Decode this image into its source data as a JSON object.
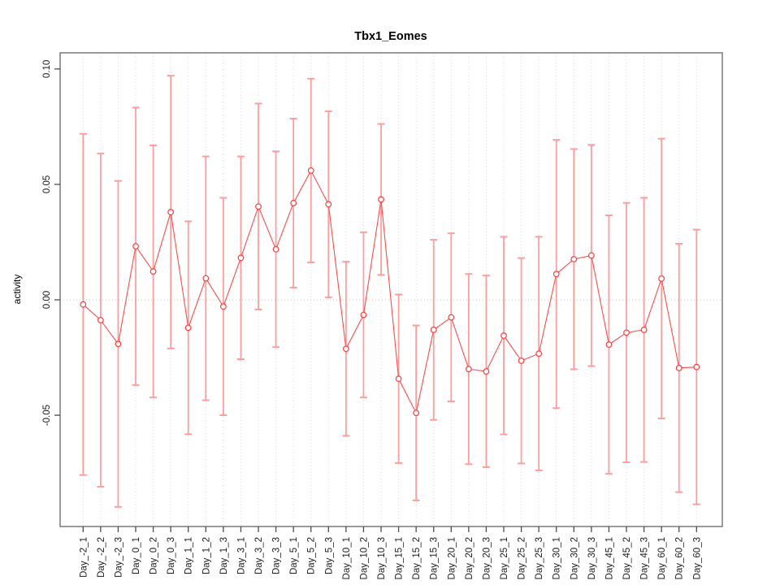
{
  "figure": {
    "title": "Tbx1_Eomes",
    "ylabel": "activity"
  },
  "chart_data": {
    "type": "line",
    "title": "Tbx1_Eomes",
    "xlabel": "",
    "ylabel": "activity",
    "legend": "none",
    "grid": "vertical dotted gridline at every category; dotted horizontal line at y=0",
    "marker": "open-circle",
    "error_bars": "symmetric, capped",
    "ylim": [
      -0.0982,
      0.107
    ],
    "y_ticks": [
      0.1,
      0.05,
      0.0,
      -0.05
    ],
    "y_tick_labels": [
      "0.10",
      "0.05",
      "0.00",
      "-0.05"
    ],
    "categories": [
      "Day_-2_1",
      "Day_-2_2",
      "Day_-2_3",
      "Day_0_1",
      "Day_0_2",
      "Day_0_3",
      "Day_1_1",
      "Day_1_2",
      "Day_1_3",
      "Day_3_1",
      "Day_3_2",
      "Day_3_3",
      "Day_5_1",
      "Day_5_2",
      "Day_5_3",
      "Day_10_1",
      "Day_10_2",
      "Day_10_3",
      "Day_15_1",
      "Day_15_2",
      "Day_15_3",
      "Day_20_1",
      "Day_20_2",
      "Day_20_3",
      "Day_25_1",
      "Day_25_2",
      "Day_25_3",
      "Day_30_1",
      "Day_30_2",
      "Day_30_3",
      "Day_45_1",
      "Day_45_2",
      "Day_45_3",
      "Day_60_1",
      "Day_60_2",
      "Day_60_3"
    ],
    "series": [
      {
        "name": "activity",
        "values": [
          -0.002,
          -0.0088,
          -0.0191,
          0.0232,
          0.0123,
          0.038,
          -0.0121,
          0.0093,
          -0.0029,
          0.0182,
          0.0404,
          0.0219,
          0.0419,
          0.056,
          0.0414,
          -0.0212,
          -0.0065,
          0.0435,
          -0.0342,
          -0.049,
          -0.013,
          -0.0076,
          -0.03,
          -0.031,
          -0.0155,
          -0.0264,
          -0.0233,
          0.0112,
          0.0176,
          0.0192,
          -0.0194,
          -0.0142,
          -0.013,
          0.0092,
          -0.0295,
          -0.0291
        ],
        "errors": [
          0.0739,
          0.0722,
          0.0706,
          0.0601,
          0.0546,
          0.0591,
          0.0461,
          0.0528,
          0.0471,
          0.0439,
          0.0446,
          0.0424,
          0.0366,
          0.0398,
          0.0403,
          0.0377,
          0.0358,
          0.0327,
          0.0365,
          0.0379,
          0.039,
          0.0364,
          0.0412,
          0.0415,
          0.0428,
          0.0445,
          0.0506,
          0.0581,
          0.0477,
          0.0479,
          0.056,
          0.0562,
          0.0572,
          0.0606,
          0.0538,
          0.0595
        ]
      }
    ],
    "colors": {
      "line": "#fb4c4c",
      "point_stroke": "#fb3d3d",
      "point_fill": "#ffffff",
      "error_bar": "#fc9e9e",
      "gridline": "#dadada",
      "zero_line": "#c9c9c9",
      "box": "#828282",
      "tick": "#4d4d4d",
      "text": "#1c1c1c"
    }
  }
}
